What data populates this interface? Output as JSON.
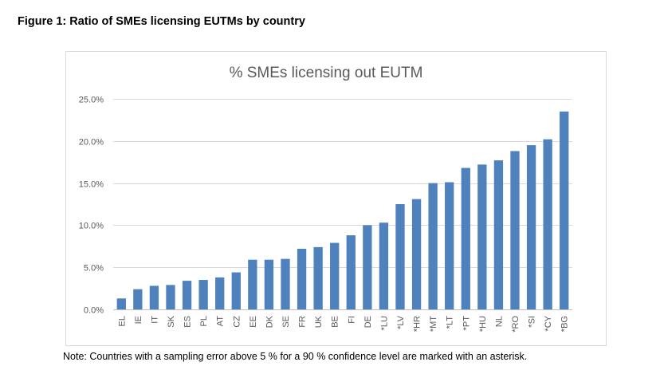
{
  "figure_title": "Figure 1: Ratio of SMEs licensing EUTMs by country",
  "note": "Note: Countries with a sampling error above 5 % for a 90 % confidence level are marked with an asterisk.",
  "colors": {
    "bar": "#4f81bd",
    "title_text": "#595959",
    "gridline": "#d9d9d9"
  },
  "chart_data": {
    "type": "bar",
    "title": "% SMEs licensing out EUTM",
    "xlabel": "",
    "ylabel": "",
    "ylim": [
      0,
      25
    ],
    "y_ticks": [
      0,
      5,
      10,
      15,
      20,
      25
    ],
    "y_tick_labels": [
      "0.0%",
      "5.0%",
      "10.0%",
      "15.0%",
      "20.0%",
      "25.0%"
    ],
    "grid": true,
    "legend": "none",
    "categories": [
      "EL",
      "IE",
      "IT",
      "SK",
      "ES",
      "PL",
      "AT",
      "CZ",
      "EE",
      "DK",
      "SE",
      "FR",
      "UK",
      "BE",
      "FI",
      "DE",
      "*LU",
      "*LV",
      "*HR",
      "*MT",
      "*LT",
      "*PT",
      "*HU",
      "NL",
      "*RO",
      "*SI",
      "*CY",
      "*BG"
    ],
    "values": [
      1.3,
      2.4,
      2.8,
      2.9,
      3.4,
      3.5,
      3.8,
      4.4,
      5.9,
      5.9,
      6.0,
      7.2,
      7.4,
      7.9,
      8.8,
      10.0,
      10.3,
      12.5,
      13.1,
      15.0,
      15.1,
      16.8,
      17.2,
      17.7,
      18.8,
      19.5,
      20.2,
      23.5
    ]
  }
}
